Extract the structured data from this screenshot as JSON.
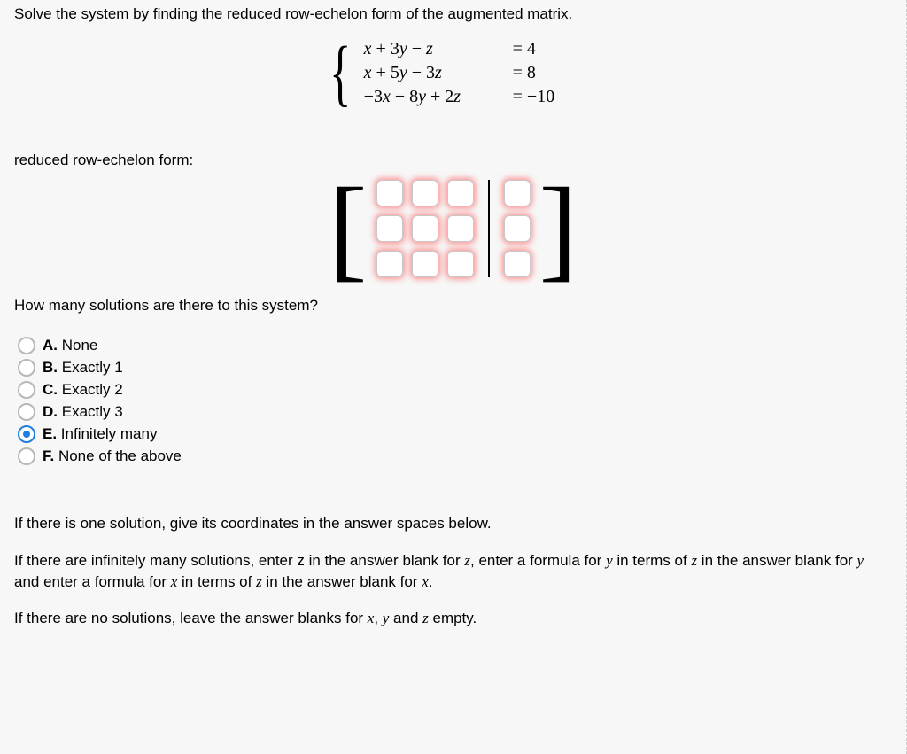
{
  "prompt": "Solve the system by finding the reduced row-echelon form of the augmented matrix.",
  "equations": [
    {
      "lhs": "x + 3y − z",
      "rhs": "= 4"
    },
    {
      "lhs": "x + 5y − 3z",
      "rhs": "= 8"
    },
    {
      "lhs": "−3x − 8y + 2z",
      "rhs": "= −10"
    }
  ],
  "rref_label": "reduced row-echelon form:",
  "matrix": {
    "rows": 3,
    "left_cols": 3,
    "right_cols": 1,
    "cells": {
      "r0c0": "",
      "r0c1": "",
      "r0c2": "",
      "r0a0": "",
      "r1c0": "",
      "r1c1": "",
      "r1c2": "",
      "r1a0": "",
      "r2c0": "",
      "r2c1": "",
      "r2c2": "",
      "r2a0": ""
    }
  },
  "question2": "How many solutions are there to this system?",
  "options": [
    {
      "letter": "A.",
      "text": "None",
      "selected": false
    },
    {
      "letter": "B.",
      "text": "Exactly 1",
      "selected": false
    },
    {
      "letter": "C.",
      "text": "Exactly 2",
      "selected": false
    },
    {
      "letter": "D.",
      "text": "Exactly 3",
      "selected": false
    },
    {
      "letter": "E.",
      "text": "Infinitely many",
      "selected": true
    },
    {
      "letter": "F.",
      "text": "None of the above",
      "selected": false
    }
  ],
  "instructions": {
    "p1_parts": [
      "If there is one solution, give its coordinates in the answer spaces below."
    ],
    "p2_parts": [
      "If there are infinitely many solutions, enter z in the answer blank for ",
      "z",
      ", enter a formula for ",
      "y",
      " in terms of ",
      "z",
      " in the answer blank for ",
      "y",
      " and enter a formula for ",
      "x",
      " in terms of ",
      "z",
      " in the answer blank for ",
      "x",
      "."
    ],
    "p3_parts": [
      "If there are no solutions, leave the answer blanks for ",
      "x",
      ", ",
      "y",
      " and ",
      "z",
      " empty."
    ]
  },
  "colors": {
    "page_bg": "#f7f7f7",
    "input_glow": "rgba(255,60,60,0.55)",
    "radio_selected": "#1e7fe0"
  },
  "fonts": {
    "body": "Arial, Helvetica, sans-serif",
    "math": "Cambria Math, STIX, Times New Roman, serif",
    "body_size": 17,
    "math_size": 20
  }
}
